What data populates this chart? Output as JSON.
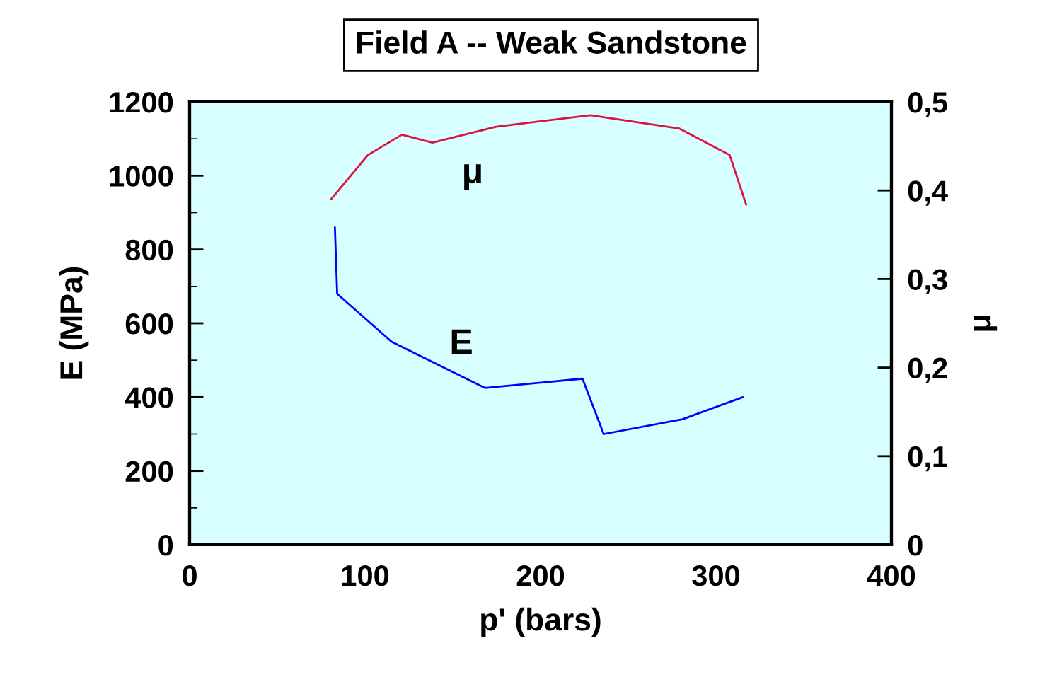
{
  "chart_data": {
    "type": "line",
    "title": "Field A -- Weak Sandstone",
    "xlabel": "p' (bars)",
    "ylabel": "E (MPa)",
    "y2label": "μ",
    "xlim": [
      0,
      400
    ],
    "xticks": [
      0,
      100,
      200,
      300,
      400
    ],
    "ylim": [
      0,
      1200
    ],
    "yticks": [
      0,
      200,
      400,
      600,
      800,
      1000,
      1200
    ],
    "y2lim": [
      0,
      0.5
    ],
    "y2ticks": [
      {
        "value": 0,
        "label": "0"
      },
      {
        "value": 0.1,
        "label": "0,1"
      },
      {
        "value": 0.2,
        "label": "0,2"
      },
      {
        "value": 0.3,
        "label": "0,3"
      },
      {
        "value": 0.4,
        "label": "0,4"
      },
      {
        "value": 0.5,
        "label": "0,5"
      }
    ],
    "grid": false,
    "legend": false,
    "series": [
      {
        "name": "E",
        "color": "#0000ff",
        "x": [
          82.8,
          84.1,
          115.1,
          168.3,
          223.9,
          236,
          280.9,
          315.3
        ],
        "values": [
          860,
          680,
          550,
          425,
          450,
          300,
          340,
          400
        ]
      },
      {
        "name": "μ",
        "color": "#dc143c",
        "axis": "y2",
        "x": [
          80.6,
          101.6,
          121,
          138.4,
          174.7,
          228.5,
          279,
          307.8,
          317.2
        ],
        "values": [
          0.39,
          0.44,
          0.463,
          0.454,
          0.472,
          0.485,
          0.47,
          0.44,
          0.384
        ]
      }
    ]
  }
}
